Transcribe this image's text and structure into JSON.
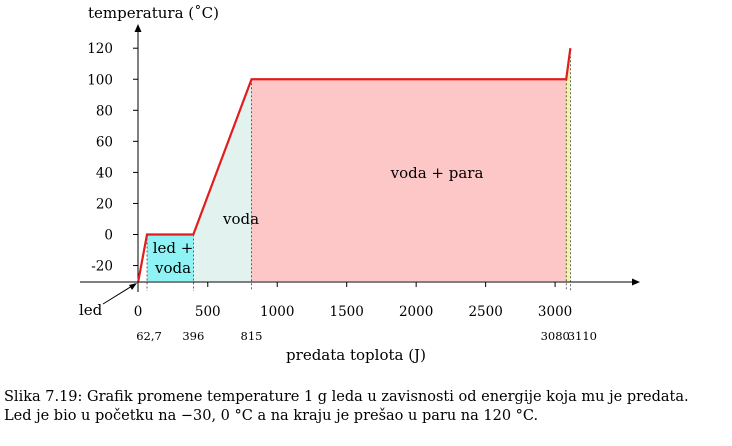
{
  "chart_data": {
    "type": "line",
    "ylabel": "temperatura (˚C)",
    "xlabel": "predata toplota (J)",
    "x_ticks": [
      500,
      1000,
      1500,
      2000,
      2500,
      3000
    ],
    "x_origin_label": "0",
    "y_ticks": [
      -20,
      0,
      20,
      40,
      60,
      80,
      100,
      120
    ],
    "xlim": [
      0,
      3150
    ],
    "ylim": [
      -30,
      130
    ],
    "series": [
      {
        "x": [
          0,
          62.7,
          396,
          815,
          3080,
          3110
        ],
        "y": [
          -30,
          0,
          0,
          100,
          100,
          120
        ]
      }
    ],
    "breakpoint_labels": [
      {
        "x": 62.7,
        "label": "62,7"
      },
      {
        "x": 396,
        "label": "396"
      },
      {
        "x": 815,
        "label": "815"
      },
      {
        "x": 3080,
        "label": "3080"
      },
      {
        "x": 3110,
        "label": "3110"
      }
    ],
    "regions": [
      {
        "name": "ice_water",
        "label_lines": [
          "led +",
          "voda"
        ],
        "color": "#8ff3f5"
      },
      {
        "name": "water",
        "label_lines": [
          "voda"
        ],
        "color": "#e2f3ef"
      },
      {
        "name": "water_steam",
        "label_lines": [
          "voda + para"
        ],
        "color": "#fdc7c7"
      },
      {
        "name": "steam",
        "label_lines": [],
        "color": "#f3f3a6"
      }
    ],
    "ice_label": "led",
    "curve_color": "#e01e1e"
  },
  "caption": {
    "line1": "Slika 7.19: Grafik promene temperature 1 g leda u zavisnosti od energije koja mu je predata.",
    "line2": "Led je bio u početku na −30, 0 °C a na kraju je prešao u paru na 120 °C."
  }
}
